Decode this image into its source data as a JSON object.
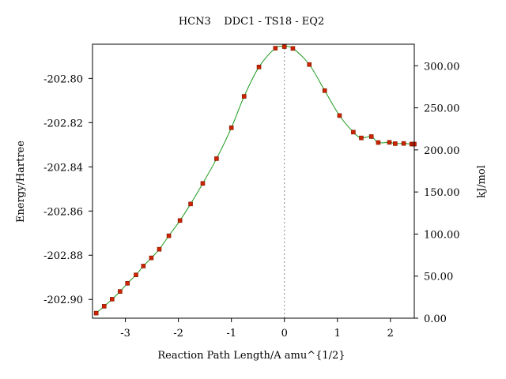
{
  "chart_data": {
    "type": "line",
    "title": "HCN3    DDC1 - TS18 - EQ2",
    "xlabel": "Reaction Path Length/A amu^{1/2}",
    "ylabel_left": "Energy/Hartree",
    "ylabel_right": "kJ/mol",
    "xlim": [
      -3.62,
      2.45
    ],
    "ylim_left": [
      -202.9085,
      -202.7845
    ],
    "ylim_right": [
      0.0,
      325.6
    ],
    "x_ticks": [
      -3,
      -2,
      -1,
      0,
      1,
      2
    ],
    "x_tick_labels": [
      "-3",
      "-2",
      "-1",
      "0",
      "1",
      "2"
    ],
    "y_left_ticks": [
      -202.8,
      -202.82,
      -202.84,
      -202.86,
      -202.88,
      -202.9
    ],
    "y_left_tick_labels": [
      "-202.80",
      "-202.82",
      "-202.84",
      "-202.86",
      "-202.88",
      "-202.90"
    ],
    "y_right_ticks": [
      0,
      50,
      100,
      150,
      200,
      250,
      300
    ],
    "y_right_tick_labels": [
      "0.00",
      "50.00",
      "100.00",
      "150.00",
      "200.00",
      "250.00",
      "300.00"
    ],
    "ts_marker_x": 0.0,
    "grid": false,
    "colors": {
      "curve": "#1a9a1a",
      "points": "#cc2200",
      "point_outline": "#7a1a00",
      "ts_line": "#888888"
    },
    "series": [
      {
        "x": [
          -3.55,
          -3.4,
          -3.25,
          -3.1,
          -2.96,
          -2.8,
          -2.66,
          -2.51,
          -2.36,
          -2.18,
          -1.97,
          -1.77,
          -1.54,
          -1.28,
          -1.0,
          -0.76,
          -0.48,
          -0.17,
          0.0,
          0.16,
          0.47,
          0.76,
          1.04,
          1.3,
          1.45,
          1.64,
          1.77,
          1.98,
          2.09,
          2.25,
          2.4,
          2.43,
          2.45
        ],
        "y": [
          -202.9062,
          -202.9031,
          -202.8999,
          -202.8964,
          -202.8927,
          -202.8889,
          -202.8849,
          -202.8812,
          -202.8773,
          -202.8712,
          -202.8643,
          -202.8568,
          -202.8475,
          -202.8363,
          -202.8223,
          -202.8081,
          -202.7948,
          -202.7863,
          -202.7856,
          -202.7864,
          -202.7937,
          -202.8055,
          -202.8168,
          -202.8243,
          -202.8269,
          -202.8263,
          -202.829,
          -202.8289,
          -202.8295,
          -202.8294,
          -202.8297,
          -202.8297,
          -202.8297
        ]
      }
    ]
  }
}
